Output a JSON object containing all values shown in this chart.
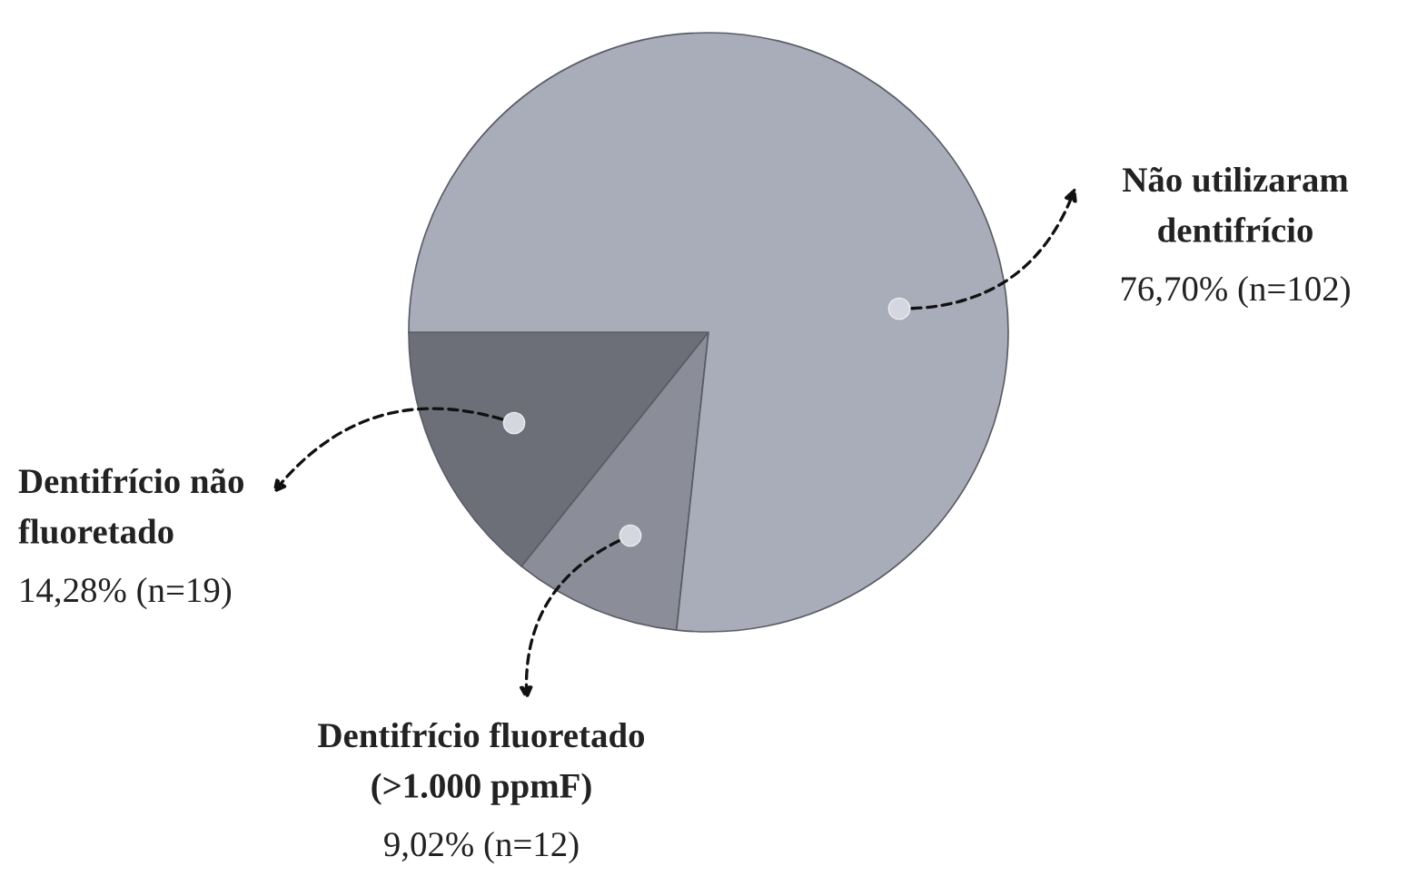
{
  "chart_data": {
    "type": "pie",
    "categories": [
      "Dentifrício não\nfluoretado",
      "Dentifrício fluoretado\n(>1.000 ppmF)",
      "Não utilizaram\ndentifrício"
    ],
    "values": [
      14.28,
      9.02,
      76.7
    ],
    "value_labels": [
      "14,28% (n=19)",
      "9,02% (n=12)",
      "76,70% (n=102)"
    ],
    "colors": [
      "#6c6f78",
      "#8b8e98",
      "#a9adba"
    ],
    "legend": false
  }
}
